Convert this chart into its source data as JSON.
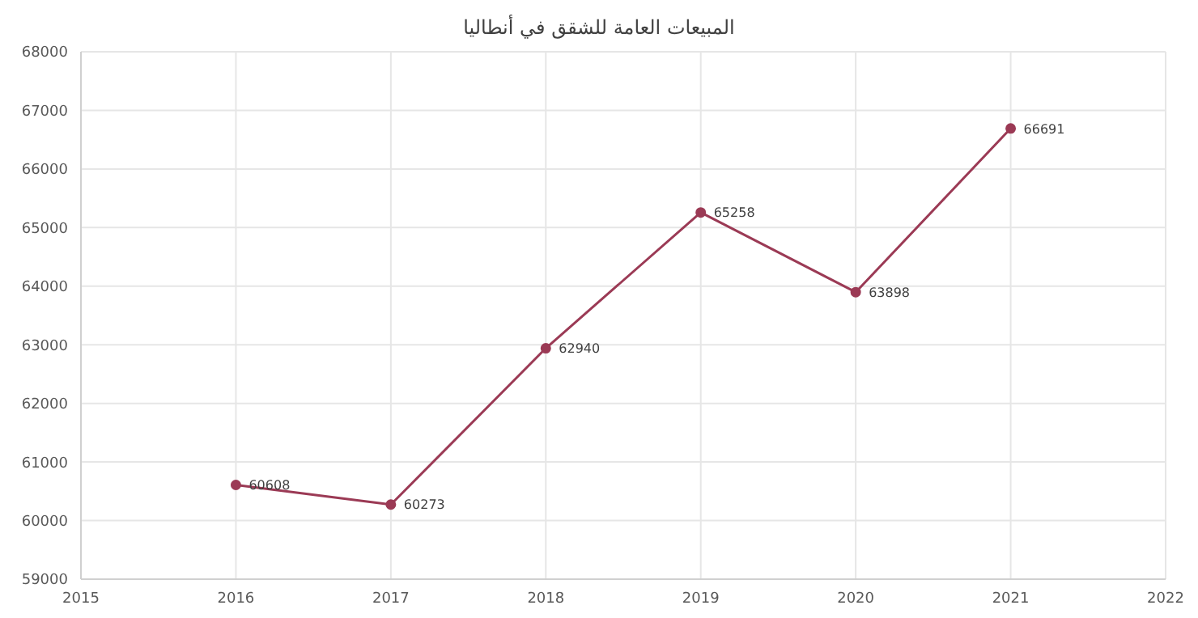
{
  "chart_data": {
    "type": "line",
    "title": "المبيعات العامة للشقق في أنطاليا",
    "x": [
      2016,
      2017,
      2018,
      2019,
      2020,
      2021
    ],
    "series": [
      {
        "color": "#9b3a55",
        "values": [
          60608,
          60273,
          62940,
          65258,
          63898,
          66691
        ]
      }
    ],
    "xlim": [
      2015,
      2022
    ],
    "xticks": [
      2015,
      2016,
      2017,
      2018,
      2019,
      2020,
      2021,
      2022
    ],
    "ylim": [
      59000,
      68000
    ],
    "yticks": [
      59000,
      60000,
      61000,
      62000,
      63000,
      64000,
      65000,
      66000,
      67000,
      68000
    ],
    "grid": true,
    "marker": "circle",
    "line_style": "solid",
    "data_labels": true,
    "legend": false
  }
}
